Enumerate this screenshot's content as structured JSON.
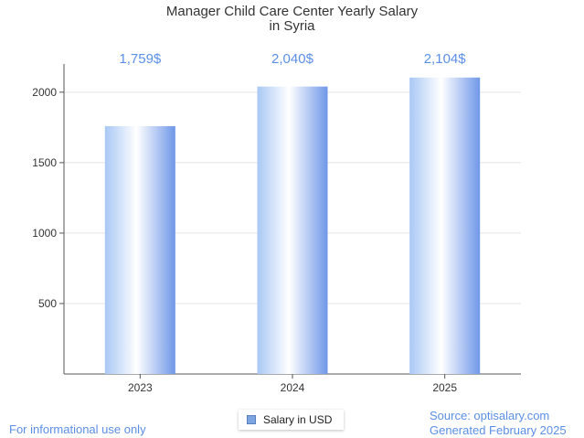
{
  "chart_data": {
    "type": "bar",
    "title": "Manager Child Care Center Yearly Salary",
    "subtitle": "in Syria",
    "categories": [
      "2023",
      "2024",
      "2025"
    ],
    "values": [
      1759,
      2040,
      2104
    ],
    "data_labels": [
      "1,759$",
      "2,040$",
      "2,104$"
    ],
    "series_name": "Salary in USD",
    "y_ticks": [
      500,
      1000,
      1500,
      2000
    ],
    "ylim": [
      0,
      2200
    ],
    "grid": true,
    "legend_position": "bottom-center"
  },
  "footer": {
    "disclaimer": "For informational use only",
    "source": "Source: optisalary.com",
    "generated": "Generated February 2025"
  },
  "colors": {
    "bar_edge": "#6f97e8",
    "bar_light": "#ffffff",
    "label": "#5b8fe6",
    "grid": "#e4e4e4",
    "axis": "#555555"
  }
}
